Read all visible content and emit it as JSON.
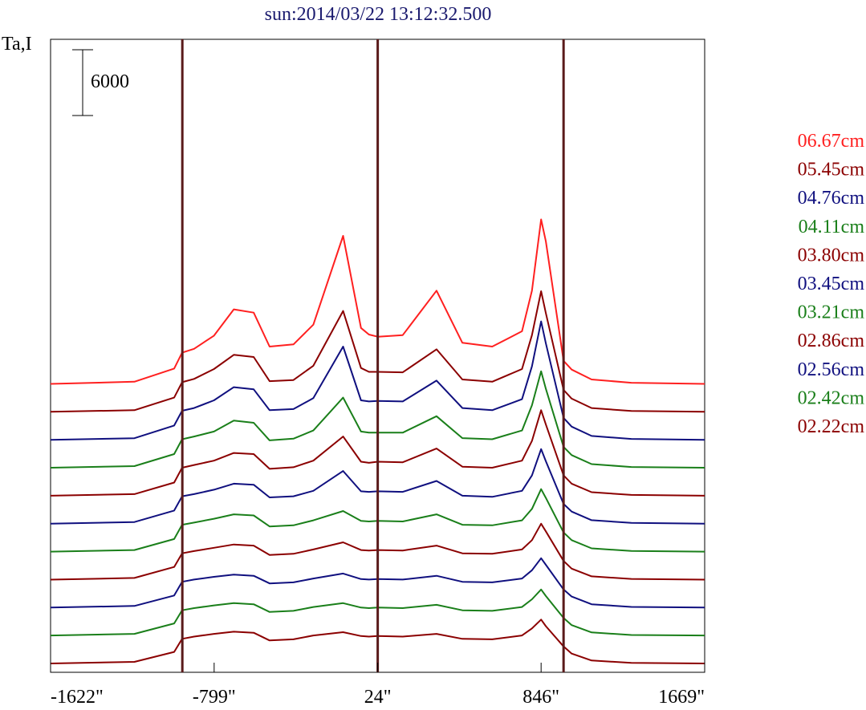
{
  "title": "sun:2014/03/22 13:12:32.500",
  "chart_data": {
    "type": "line",
    "title": "sun:2014/03/22 13:12:32.500",
    "ylabel": "Ta,I",
    "xlabel": "",
    "scale_bar_label": "6000",
    "scale_bar_value": 6000,
    "x_ticks": [
      {
        "value": -1622,
        "label": "-1622\""
      },
      {
        "value": -799,
        "label": "-799\""
      },
      {
        "value": 24,
        "label": "24\""
      },
      {
        "value": 846,
        "label": "846\""
      },
      {
        "value": 1669,
        "label": "1669\""
      }
    ],
    "xlim": [
      -1622,
      1669
    ],
    "vertical_lines": [
      -959,
      24,
      959
    ],
    "grid": false,
    "legend_position": "right",
    "stack_offset": 2550,
    "x": [
      -1622,
      -1200,
      -1000,
      -960,
      -900,
      -800,
      -700,
      -600,
      -520,
      -400,
      -300,
      -150,
      -60,
      -20,
      24,
      150,
      320,
      450,
      600,
      750,
      800,
      846,
      870,
      959,
      1000,
      1100,
      1300,
      1669
    ],
    "series": [
      {
        "name": "06.67cm",
        "color": "#ff2020",
        "values": [
          0,
          200,
          1400,
          2850,
          3200,
          4400,
          6800,
          6500,
          3400,
          3600,
          5400,
          13500,
          5100,
          4500,
          4300,
          4450,
          8500,
          3750,
          3400,
          4800,
          8500,
          15000,
          13000,
          2100,
          1300,
          400,
          100,
          0
        ]
      },
      {
        "name": "05.45cm",
        "color": "#8b0000",
        "values": [
          0,
          150,
          1300,
          2700,
          3000,
          3900,
          5200,
          5000,
          2800,
          2900,
          4200,
          9200,
          4000,
          3650,
          3650,
          3600,
          5700,
          2950,
          2750,
          3900,
          7000,
          11000,
          9000,
          2000,
          1200,
          350,
          80,
          0
        ]
      },
      {
        "name": "04.76cm",
        "color": "#10107f",
        "values": [
          0,
          150,
          1300,
          2650,
          2900,
          3600,
          4800,
          4600,
          2700,
          2800,
          3800,
          8500,
          3600,
          3500,
          3550,
          3500,
          5400,
          2900,
          2700,
          3700,
          6700,
          10800,
          8800,
          2000,
          1200,
          350,
          80,
          0
        ]
      },
      {
        "name": "04.11cm",
        "color": "#1a7f1a",
        "values": [
          0,
          150,
          1250,
          2600,
          2850,
          3300,
          4300,
          4100,
          2500,
          2650,
          3400,
          6400,
          3300,
          3200,
          3200,
          3200,
          4700,
          2700,
          2600,
          3400,
          5700,
          8800,
          7200,
          1900,
          1150,
          330,
          70,
          0
        ]
      },
      {
        "name": "03.80cm",
        "color": "#8b0000",
        "values": [
          0,
          150,
          1200,
          2550,
          2800,
          3200,
          3900,
          3800,
          2450,
          2600,
          3200,
          5400,
          3100,
          3000,
          3100,
          3050,
          4300,
          2650,
          2550,
          3200,
          5000,
          7800,
          6500,
          1850,
          1100,
          320,
          70,
          0
        ]
      },
      {
        "name": "03.45cm",
        "color": "#10107f",
        "values": [
          0,
          150,
          1200,
          2500,
          2700,
          3100,
          3650,
          3550,
          2400,
          2500,
          3000,
          4800,
          2950,
          2900,
          2950,
          2900,
          3900,
          2550,
          2450,
          3000,
          4400,
          6800,
          5700,
          1800,
          1100,
          320,
          70,
          0
        ]
      },
      {
        "name": "03.21cm",
        "color": "#1a7f1a",
        "values": [
          0,
          150,
          1150,
          2450,
          2650,
          3000,
          3400,
          3300,
          2300,
          2400,
          2850,
          3700,
          2800,
          2750,
          2800,
          2750,
          3400,
          2450,
          2400,
          2850,
          3900,
          5700,
          4900,
          1750,
          1050,
          300,
          60,
          0
        ]
      },
      {
        "name": "02.86cm",
        "color": "#8b0000",
        "values": [
          0,
          150,
          1150,
          2400,
          2600,
          2900,
          3200,
          3100,
          2250,
          2350,
          2750,
          3400,
          2700,
          2650,
          2700,
          2650,
          3100,
          2400,
          2350,
          2750,
          3600,
          5100,
          4400,
          1700,
          1000,
          300,
          60,
          0
        ]
      },
      {
        "name": "02.56cm",
        "color": "#10107f",
        "values": [
          0,
          150,
          1100,
          2350,
          2550,
          2800,
          3000,
          2900,
          2200,
          2300,
          2650,
          3100,
          2600,
          2550,
          2600,
          2550,
          2900,
          2350,
          2300,
          2650,
          3400,
          4500,
          3900,
          1650,
          1000,
          300,
          60,
          0
        ]
      },
      {
        "name": "02.42cm",
        "color": "#1a7f1a",
        "values": [
          0,
          150,
          1100,
          2300,
          2500,
          2750,
          2950,
          2850,
          2150,
          2250,
          2600,
          2950,
          2550,
          2500,
          2550,
          2500,
          2800,
          2300,
          2250,
          2600,
          3300,
          4200,
          3600,
          1600,
          950,
          280,
          50,
          0
        ]
      },
      {
        "name": "02.22cm",
        "color": "#8b0000",
        "values": [
          0,
          150,
          1050,
          2250,
          2450,
          2700,
          2900,
          2800,
          2100,
          2200,
          2550,
          2850,
          2500,
          2450,
          2500,
          2450,
          2700,
          2250,
          2200,
          2550,
          3200,
          4000,
          3400,
          1550,
          900,
          270,
          50,
          0
        ]
      }
    ]
  }
}
